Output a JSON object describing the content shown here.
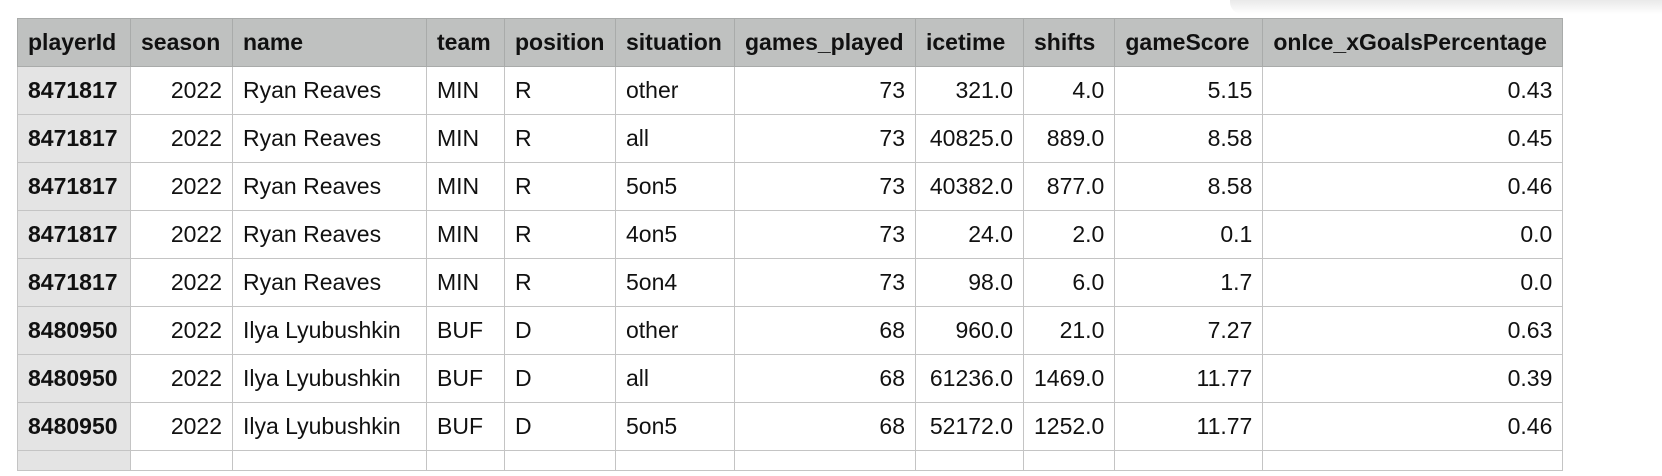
{
  "columns": [
    "playerId",
    "season",
    "name",
    "team",
    "position",
    "situation",
    "games_played",
    "icetime",
    "shifts",
    "gameScore",
    "onIce_xGoalsPercentage"
  ],
  "rows": [
    [
      "8471817",
      "2022",
      "Ryan Reaves",
      "MIN",
      "R",
      "other",
      "73",
      "321.0",
      "4.0",
      "5.15",
      "0.43"
    ],
    [
      "8471817",
      "2022",
      "Ryan Reaves",
      "MIN",
      "R",
      "all",
      "73",
      "40825.0",
      "889.0",
      "8.58",
      "0.45"
    ],
    [
      "8471817",
      "2022",
      "Ryan Reaves",
      "MIN",
      "R",
      "5on5",
      "73",
      "40382.0",
      "877.0",
      "8.58",
      "0.46"
    ],
    [
      "8471817",
      "2022",
      "Ryan Reaves",
      "MIN",
      "R",
      "4on5",
      "73",
      "24.0",
      "2.0",
      "0.1",
      "0.0"
    ],
    [
      "8471817",
      "2022",
      "Ryan Reaves",
      "MIN",
      "R",
      "5on4",
      "73",
      "98.0",
      "6.0",
      "1.7",
      "0.0"
    ],
    [
      "8480950",
      "2022",
      "Ilya Lyubushkin",
      "BUF",
      "D",
      "other",
      "68",
      "960.0",
      "21.0",
      "7.27",
      "0.63"
    ],
    [
      "8480950",
      "2022",
      "Ilya Lyubushkin",
      "BUF",
      "D",
      "all",
      "68",
      "61236.0",
      "1469.0",
      "11.77",
      "0.39"
    ],
    [
      "8480950",
      "2022",
      "Ilya Lyubushkin",
      "BUF",
      "D",
      "5on5",
      "68",
      "52172.0",
      "1252.0",
      "11.77",
      "0.46"
    ]
  ]
}
